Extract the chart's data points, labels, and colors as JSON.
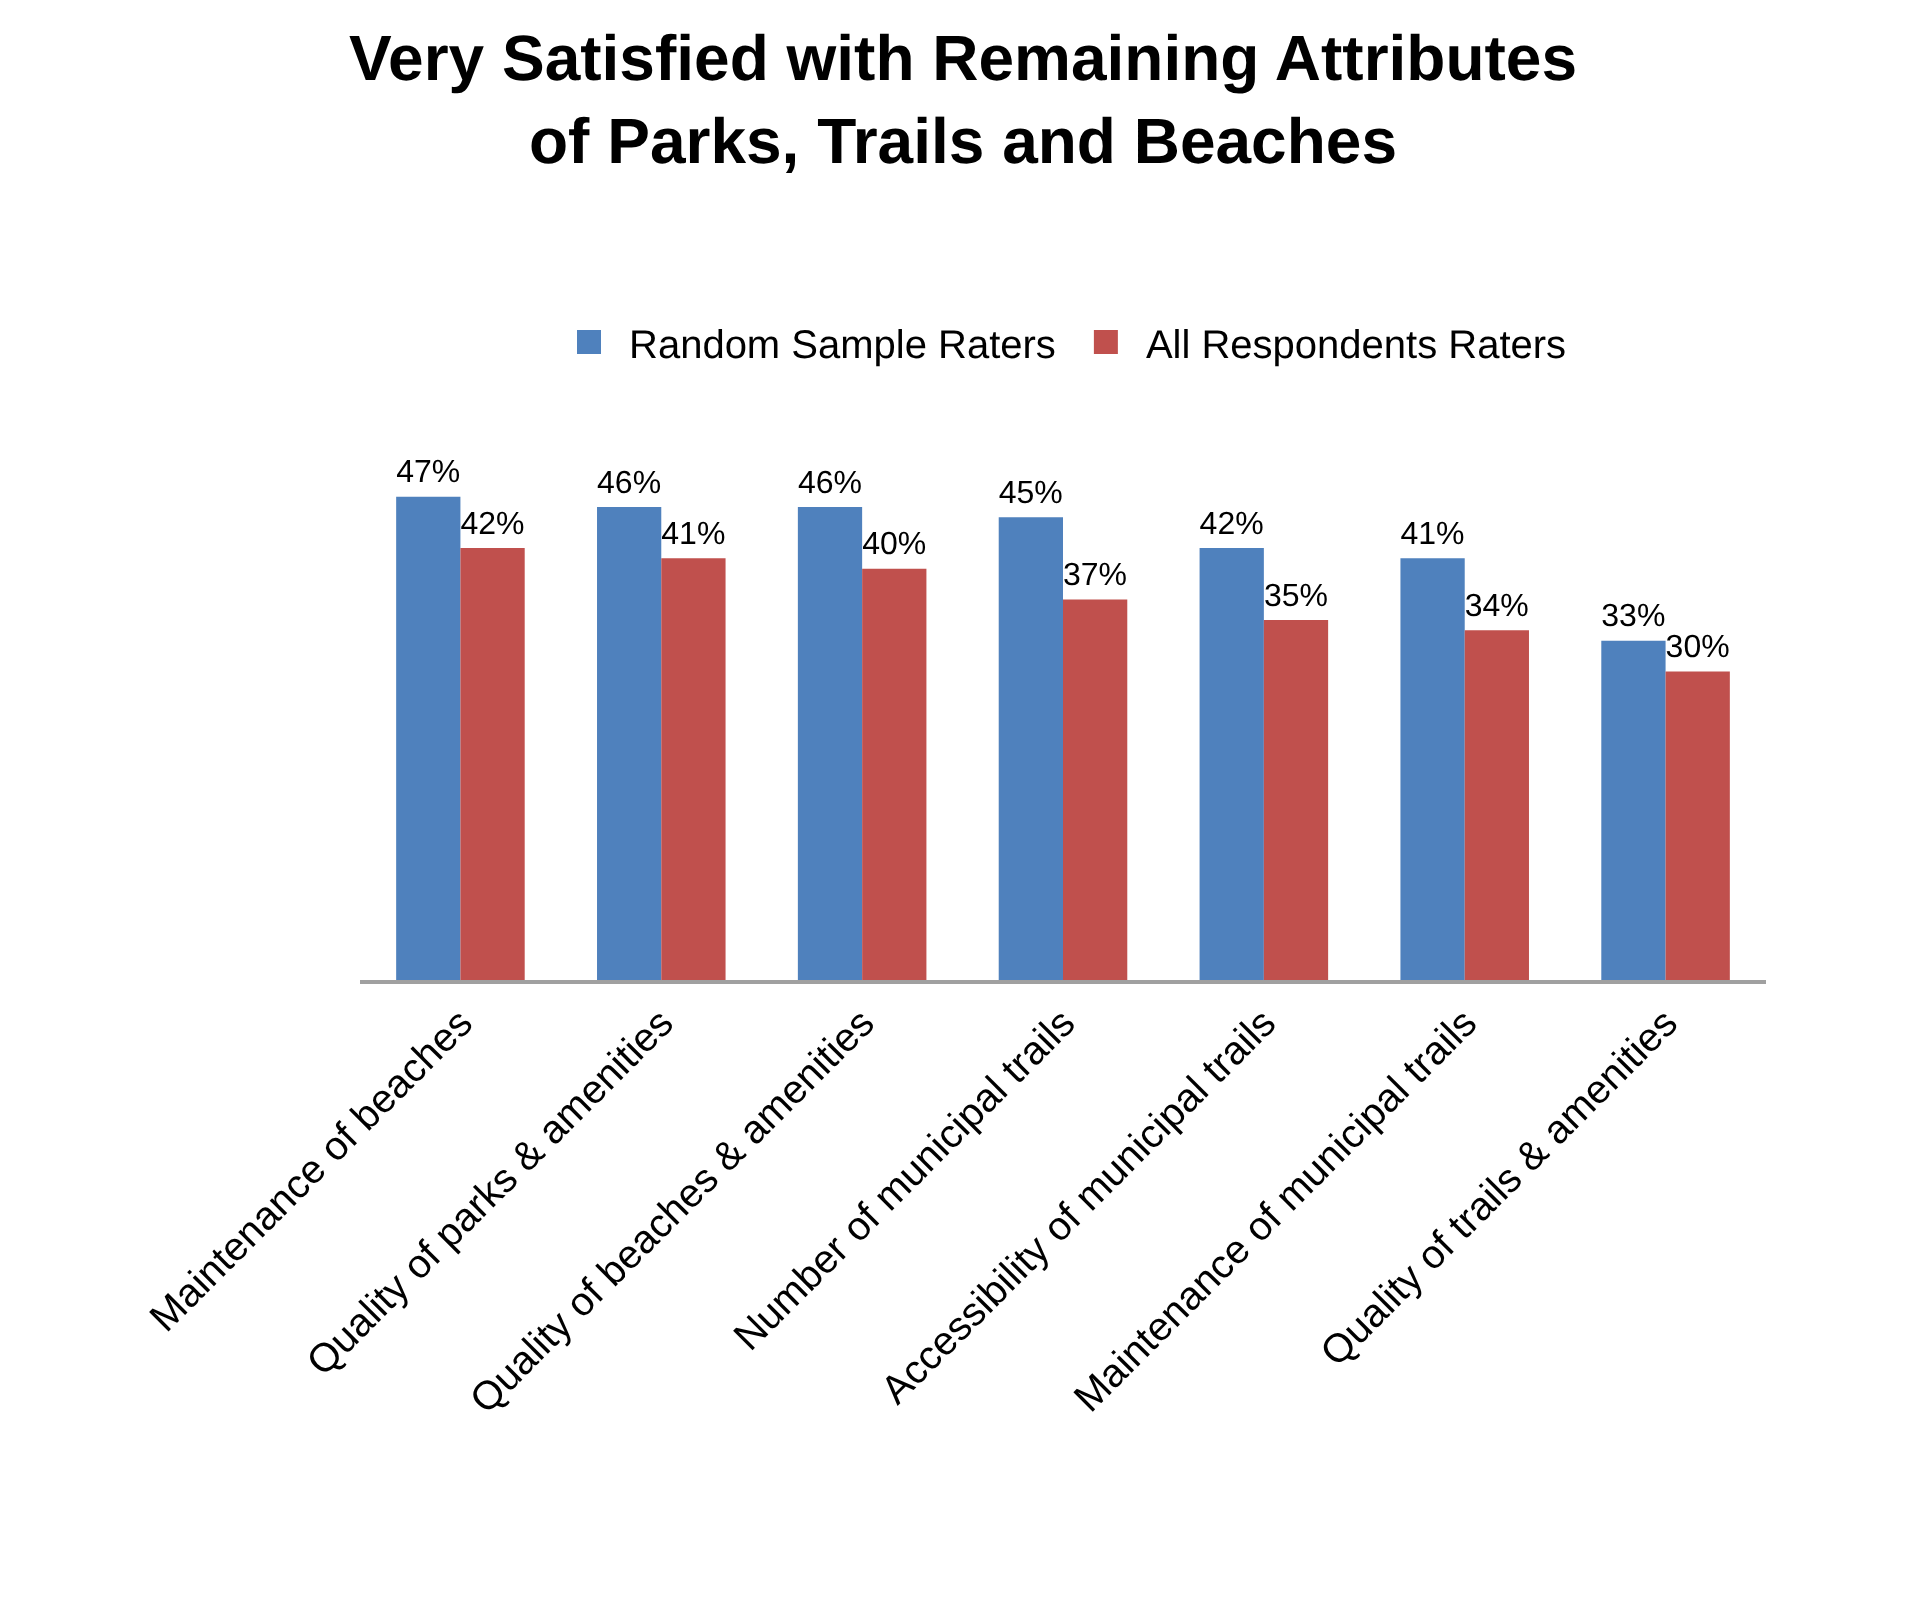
{
  "chart_data": {
    "type": "bar",
    "title": "Very Satisfied with Remaining Attributes\nof Parks, Trails and Beaches",
    "categories": [
      "Maintenance of beaches",
      "Quality of parks & amenities",
      "Quality of beaches & amenities",
      "Number of municipal trails",
      "Accessibility of municipal trails",
      "Maintenance of municipal trails",
      "Quality of trails & amenities"
    ],
    "series": [
      {
        "name": "Random Sample Raters",
        "color": "#4f81bd",
        "values": [
          47,
          46,
          46,
          45,
          42,
          41,
          33
        ],
        "value_labels": [
          "47%",
          "46%",
          "46%",
          "45%",
          "42%",
          "41%",
          "33%"
        ]
      },
      {
        "name": "All Respondents Raters",
        "color": "#c0504d",
        "values": [
          42,
          41,
          40,
          37,
          35,
          34,
          30
        ],
        "value_labels": [
          "42%",
          "41%",
          "40%",
          "37%",
          "35%",
          "34%",
          "30%"
        ]
      }
    ],
    "legend": "top",
    "tick_labels": "x"
  }
}
